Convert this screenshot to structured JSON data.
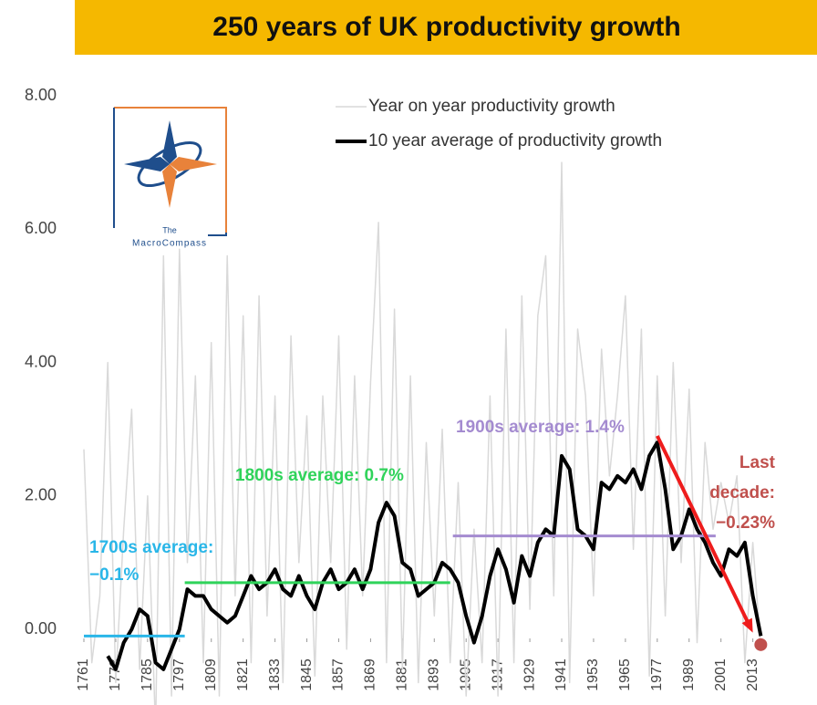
{
  "chart_data": {
    "type": "line",
    "title": "250 years of UK productivity growth",
    "logo": [
      "The",
      "MacroCompass"
    ],
    "x": [
      1761,
      1764,
      1767,
      1770,
      1773,
      1776,
      1779,
      1782,
      1785,
      1788,
      1791,
      1794,
      1797,
      1800,
      1803,
      1806,
      1809,
      1812,
      1815,
      1818,
      1821,
      1824,
      1827,
      1830,
      1833,
      1836,
      1839,
      1842,
      1845,
      1848,
      1851,
      1854,
      1857,
      1860,
      1863,
      1866,
      1869,
      1872,
      1875,
      1878,
      1881,
      1884,
      1887,
      1890,
      1893,
      1896,
      1899,
      1902,
      1905,
      1908,
      1911,
      1914,
      1917,
      1920,
      1923,
      1926,
      1929,
      1932,
      1935,
      1938,
      1941,
      1944,
      1947,
      1950,
      1953,
      1956,
      1959,
      1962,
      1965,
      1968,
      1971,
      1974,
      1977,
      1980,
      1983,
      1986,
      1989,
      1992,
      1995,
      1998,
      2001,
      2004,
      2007,
      2010,
      2013,
      2016
    ],
    "series": [
      {
        "name": "Year on year productivity growth",
        "color": "#d9d9d9",
        "width": 1.5,
        "values": [
          2.7,
          -0.5,
          0.5,
          4.0,
          -0.8,
          1.5,
          3.3,
          -0.6,
          2.0,
          -1.5,
          5.6,
          -1.0,
          5.7,
          1.0,
          3.8,
          -0.5,
          4.3,
          -1.0,
          5.6,
          0.5,
          4.7,
          -0.5,
          5.0,
          0.2,
          3.5,
          -0.8,
          4.4,
          1.0,
          3.2,
          -0.7,
          3.5,
          1.0,
          4.4,
          -0.3,
          3.8,
          0.5,
          3.7,
          6.1,
          -0.5,
          4.8,
          -0.6,
          3.8,
          -0.8,
          2.8,
          0.2,
          3.0,
          -0.5,
          2.2,
          -1.0,
          1.5,
          -0.5,
          3.5,
          -1.0,
          4.5,
          -0.5,
          5.0,
          0.3,
          4.7,
          5.6,
          0.5,
          7.0,
          -0.8,
          4.5,
          3.5,
          0.5,
          4.2,
          2.3,
          3.5,
          5.0,
          1.2,
          4.5,
          -0.7,
          3.8,
          0.2,
          4.0,
          1.0,
          3.6,
          -0.2,
          2.8,
          1.5,
          2.2,
          1.6,
          2.3,
          -0.5,
          1.3,
          -0.3
        ]
      },
      {
        "name": "10 year average of productivity growth",
        "color": "#000000",
        "width": 4,
        "values": [
          null,
          null,
          null,
          -0.4,
          -0.6,
          -0.2,
          0.0,
          0.3,
          0.2,
          -0.5,
          -0.6,
          -0.3,
          0.0,
          0.6,
          0.5,
          0.5,
          0.3,
          0.2,
          0.1,
          0.2,
          0.5,
          0.8,
          0.6,
          0.7,
          0.9,
          0.6,
          0.5,
          0.8,
          0.5,
          0.3,
          0.7,
          0.9,
          0.6,
          0.7,
          0.9,
          0.6,
          0.9,
          1.6,
          1.9,
          1.7,
          1.0,
          0.9,
          0.5,
          0.6,
          0.7,
          1.0,
          0.9,
          0.7,
          0.2,
          -0.2,
          0.2,
          0.8,
          1.2,
          0.9,
          0.4,
          1.1,
          0.8,
          1.3,
          1.5,
          1.4,
          2.6,
          2.4,
          1.5,
          1.4,
          1.2,
          2.2,
          2.1,
          2.3,
          2.2,
          2.4,
          2.1,
          2.6,
          2.8,
          2.1,
          1.2,
          1.4,
          1.8,
          1.5,
          1.3,
          1.0,
          0.8,
          1.2,
          1.1,
          1.3,
          0.5,
          -0.1
        ]
      }
    ],
    "xlim": [
      1761,
      2020
    ],
    "xticks": [
      1761,
      1773,
      1785,
      1797,
      1809,
      1821,
      1833,
      1845,
      1857,
      1869,
      1881,
      1893,
      1905,
      1917,
      1929,
      1941,
      1953,
      1965,
      1977,
      1989,
      2001,
      2013
    ],
    "ylim": [
      -0.7,
      8.2
    ],
    "yticks": [
      {
        "value": 0,
        "label": "0.00"
      },
      {
        "value": 2,
        "label": "2.00"
      },
      {
        "value": 4,
        "label": "4.00"
      },
      {
        "value": 6,
        "label": "6.00"
      },
      {
        "value": 8,
        "label": "8.00"
      }
    ],
    "averages": [
      {
        "lines": [
          "1700s average:",
          "−0.1%"
        ],
        "value": -0.1,
        "start": 1761,
        "end": 1799,
        "color": "#29b6e8"
      },
      {
        "lines": [
          "1800s average: 0.7%"
        ],
        "value": 0.7,
        "start": 1799,
        "end": 1899,
        "color": "#2fd35a"
      },
      {
        "lines": [
          "1900s average: 1.4%"
        ],
        "value": 1.4,
        "start": 1900,
        "end": 1999,
        "color": "#a48bd0"
      }
    ],
    "trend_arrow": {
      "x": [
        1977,
        2013
      ],
      "y": [
        2.9,
        -0.05
      ],
      "color": "#ee1c1c"
    },
    "last_decade": {
      "lines": [
        "Last",
        "decade:",
        "−0.23%"
      ],
      "value": -0.23,
      "x": 2016,
      "color": "#c0504d"
    }
  }
}
